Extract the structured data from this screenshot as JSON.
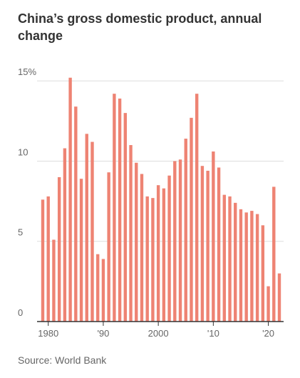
{
  "chart_data": {
    "type": "bar",
    "title": "China’s gross domestic product, annual change",
    "source": "Source: World Bank",
    "categories": [
      null,
      "1980",
      null,
      null,
      null,
      null,
      null,
      null,
      null,
      null,
      null,
      "'90",
      null,
      null,
      null,
      null,
      null,
      null,
      null,
      null,
      null,
      "2000",
      null,
      null,
      null,
      null,
      null,
      null,
      null,
      null,
      null,
      "'10",
      null,
      null,
      null,
      null,
      null,
      null,
      null,
      null,
      null,
      "'20",
      null,
      null
    ],
    "values": [
      7.6,
      7.8,
      5.1,
      9.0,
      10.8,
      15.2,
      13.4,
      8.9,
      11.7,
      11.2,
      4.2,
      3.9,
      9.3,
      14.2,
      13.9,
      13.0,
      11.0,
      9.9,
      9.2,
      7.8,
      7.7,
      8.5,
      8.3,
      9.1,
      10.0,
      10.1,
      11.4,
      12.7,
      14.2,
      9.7,
      9.4,
      10.6,
      9.6,
      7.9,
      7.8,
      7.4,
      7.0,
      6.8,
      6.9,
      6.7,
      6.0,
      2.2,
      8.4,
      3.0
    ],
    "color": "#ee8373",
    "ylim": [
      0,
      15.5
    ],
    "yticks": [
      0,
      5,
      10,
      {
        "value": 15,
        "label": "15%"
      }
    ],
    "grid": true
  }
}
